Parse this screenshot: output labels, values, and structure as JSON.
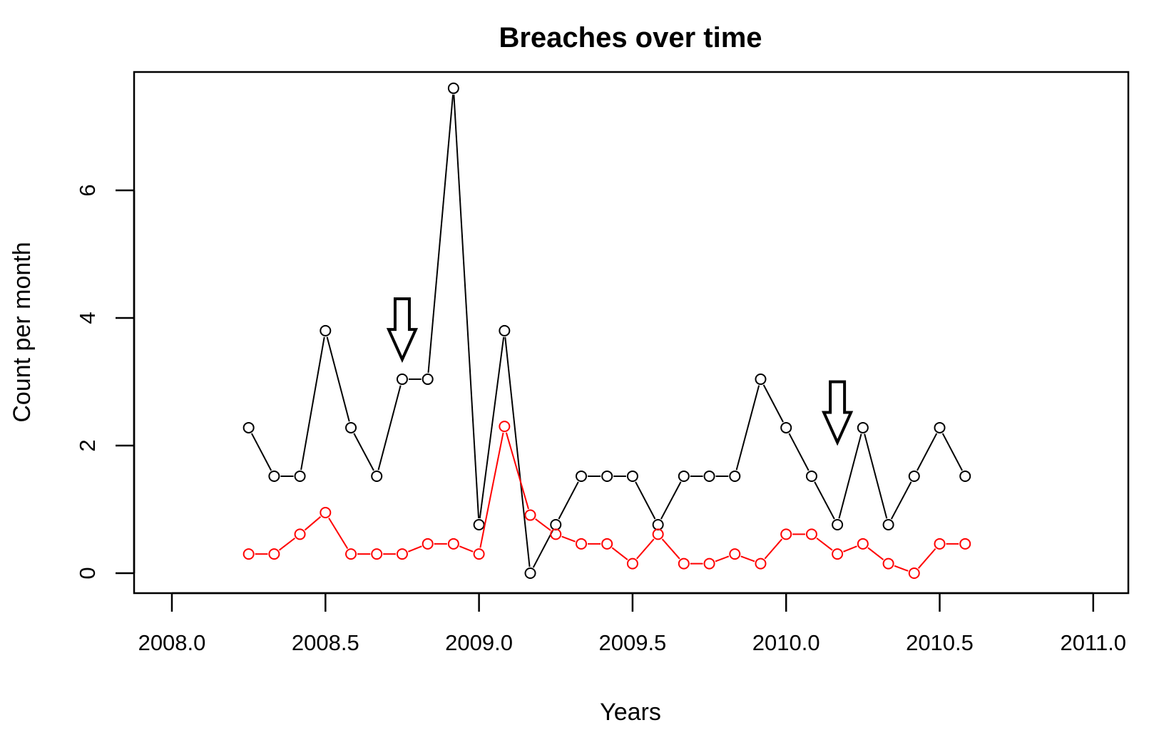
{
  "chart_data": {
    "type": "line",
    "title": "Breaches over time",
    "xlabel": "Years",
    "ylabel": "Count per month",
    "xlim": [
      2008.0,
      2011.0
    ],
    "ylim": [
      0,
      7.6
    ],
    "x_ticks": [
      {
        "value": 2008.0,
        "label": "2008.0"
      },
      {
        "value": 2008.5,
        "label": "2008.5"
      },
      {
        "value": 2009.0,
        "label": "2009.0"
      },
      {
        "value": 2009.5,
        "label": "2009.5"
      },
      {
        "value": 2010.0,
        "label": "2010.0"
      },
      {
        "value": 2010.5,
        "label": "2010.5"
      },
      {
        "value": 2011.0,
        "label": "2011.0"
      }
    ],
    "y_ticks": [
      {
        "value": 0,
        "label": "0"
      },
      {
        "value": 2,
        "label": "2"
      },
      {
        "value": 4,
        "label": "4"
      },
      {
        "value": 6,
        "label": "6"
      }
    ],
    "grid": false,
    "legend": "none",
    "x": [
      2008.25,
      2008.333,
      2008.417,
      2008.5,
      2008.583,
      2008.667,
      2008.75,
      2008.833,
      2008.917,
      2009.0,
      2009.083,
      2009.167,
      2009.25,
      2009.333,
      2009.417,
      2009.5,
      2009.583,
      2009.667,
      2009.75,
      2009.833,
      2009.917,
      2010.0,
      2010.083,
      2010.167,
      2010.25,
      2010.333,
      2010.417,
      2010.5,
      2010.583
    ],
    "series": [
      {
        "color": "#000000",
        "values": [
          2.28,
          1.52,
          1.52,
          3.8,
          2.28,
          1.52,
          3.04,
          3.04,
          7.6,
          0.76,
          3.8,
          0.0,
          0.76,
          1.52,
          1.52,
          1.52,
          0.76,
          1.52,
          1.52,
          1.52,
          3.04,
          2.28,
          1.52,
          0.76,
          2.28,
          0.76,
          1.52,
          2.28,
          1.52
        ]
      },
      {
        "color": "#ff0000",
        "values": [
          0.3,
          0.3,
          0.61,
          0.95,
          0.3,
          0.3,
          0.3,
          0.46,
          0.46,
          0.3,
          2.3,
          0.91,
          0.61,
          0.46,
          0.46,
          0.15,
          0.61,
          0.15,
          0.15,
          0.3,
          0.15,
          0.61,
          0.61,
          0.3,
          0.46,
          0.15,
          0.0,
          0.46,
          0.46
        ]
      }
    ],
    "annotations": [
      {
        "type": "down-arrow",
        "x": 2008.75,
        "y_top": 4.3,
        "y_tip": 3.35
      },
      {
        "type": "down-arrow",
        "x": 2010.167,
        "y_top": 3.0,
        "y_tip": 2.05
      }
    ]
  }
}
